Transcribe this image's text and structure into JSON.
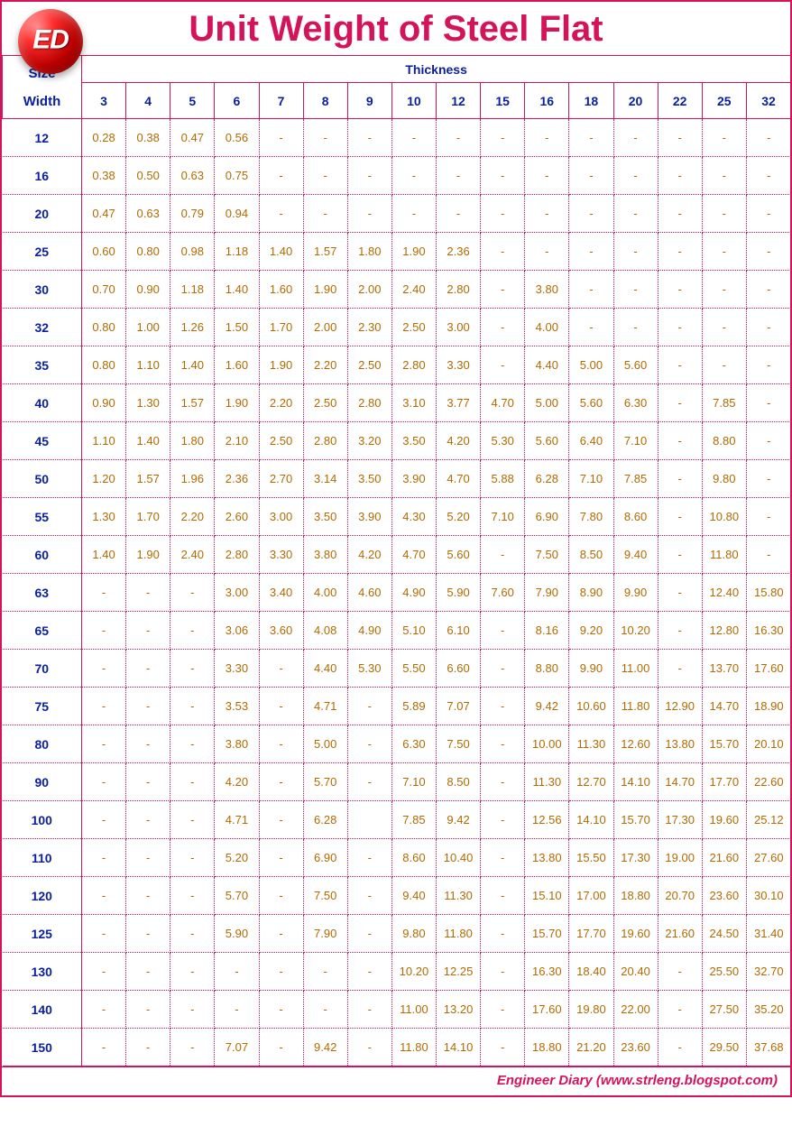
{
  "logo_text": "ED",
  "title": "Unit Weight of Steel Flat",
  "footer": "Engineer Diary (www.strleng.blogspot.com)",
  "colors": {
    "border": "#d4145a",
    "title": "#d4145a",
    "header_text": "#0b1ea0",
    "cell_text": "#b26a00",
    "background": "#ffffff"
  },
  "table": {
    "size_label_top": "Size",
    "size_label_bottom": "Width",
    "thickness_label": "Thickness",
    "thickness_cols": [
      "3",
      "4",
      "5",
      "6",
      "7",
      "8",
      "9",
      "10",
      "12",
      "15",
      "16",
      "18",
      "20",
      "22",
      "25",
      "32"
    ],
    "widths": [
      "12",
      "16",
      "20",
      "25",
      "30",
      "32",
      "35",
      "40",
      "45",
      "50",
      "55",
      "60",
      "63",
      "65",
      "70",
      "75",
      "80",
      "90",
      "100",
      "110",
      "120",
      "125",
      "130",
      "140",
      "150"
    ],
    "rows": [
      [
        "0.28",
        "0.38",
        "0.47",
        "0.56",
        "-",
        "-",
        "-",
        "-",
        "-",
        "-",
        "-",
        "-",
        "-",
        "-",
        "-",
        "-"
      ],
      [
        "0.38",
        "0.50",
        "0.63",
        "0.75",
        "-",
        "-",
        "-",
        "-",
        "-",
        "-",
        "-",
        "-",
        "-",
        "-",
        "-",
        "-"
      ],
      [
        "0.47",
        "0.63",
        "0.79",
        "0.94",
        "-",
        "-",
        "-",
        "-",
        "-",
        "-",
        "-",
        "-",
        "-",
        "-",
        "-",
        "-"
      ],
      [
        "0.60",
        "0.80",
        "0.98",
        "1.18",
        "1.40",
        "1.57",
        "1.80",
        "1.90",
        "2.36",
        "-",
        "-",
        "-",
        "-",
        "-",
        "-",
        "-"
      ],
      [
        "0.70",
        "0.90",
        "1.18",
        "1.40",
        "1.60",
        "1.90",
        "2.00",
        "2.40",
        "2.80",
        "-",
        "3.80",
        "-",
        "-",
        "-",
        "-",
        "-"
      ],
      [
        "0.80",
        "1.00",
        "1.26",
        "1.50",
        "1.70",
        "2.00",
        "2.30",
        "2.50",
        "3.00",
        "-",
        "4.00",
        "-",
        "-",
        "-",
        "-",
        "-"
      ],
      [
        "0.80",
        "1.10",
        "1.40",
        "1.60",
        "1.90",
        "2.20",
        "2.50",
        "2.80",
        "3.30",
        "-",
        "4.40",
        "5.00",
        "5.60",
        "-",
        "-",
        "-"
      ],
      [
        "0.90",
        "1.30",
        "1.57",
        "1.90",
        "2.20",
        "2.50",
        "2.80",
        "3.10",
        "3.77",
        "4.70",
        "5.00",
        "5.60",
        "6.30",
        "-",
        "7.85",
        "-"
      ],
      [
        "1.10",
        "1.40",
        "1.80",
        "2.10",
        "2.50",
        "2.80",
        "3.20",
        "3.50",
        "4.20",
        "5.30",
        "5.60",
        "6.40",
        "7.10",
        "-",
        "8.80",
        "-"
      ],
      [
        "1.20",
        "1.57",
        "1.96",
        "2.36",
        "2.70",
        "3.14",
        "3.50",
        "3.90",
        "4.70",
        "5.88",
        "6.28",
        "7.10",
        "7.85",
        "-",
        "9.80",
        "-"
      ],
      [
        "1.30",
        "1.70",
        "2.20",
        "2.60",
        "3.00",
        "3.50",
        "3.90",
        "4.30",
        "5.20",
        "7.10",
        "6.90",
        "7.80",
        "8.60",
        "-",
        "10.80",
        "-"
      ],
      [
        "1.40",
        "1.90",
        "2.40",
        "2.80",
        "3.30",
        "3.80",
        "4.20",
        "4.70",
        "5.60",
        "-",
        "7.50",
        "8.50",
        "9.40",
        "-",
        "11.80",
        "-"
      ],
      [
        "-",
        "-",
        "-",
        "3.00",
        "3.40",
        "4.00",
        "4.60",
        "4.90",
        "5.90",
        "7.60",
        "7.90",
        "8.90",
        "9.90",
        "-",
        "12.40",
        "15.80"
      ],
      [
        "-",
        "-",
        "-",
        "3.06",
        "3.60",
        "4.08",
        "4.90",
        "5.10",
        "6.10",
        "-",
        "8.16",
        "9.20",
        "10.20",
        "-",
        "12.80",
        "16.30"
      ],
      [
        "-",
        "-",
        "-",
        "3.30",
        "-",
        "4.40",
        "5.30",
        "5.50",
        "6.60",
        "-",
        "8.80",
        "9.90",
        "11.00",
        "-",
        "13.70",
        "17.60"
      ],
      [
        "-",
        "-",
        "-",
        "3.53",
        "-",
        "4.71",
        "-",
        "5.89",
        "7.07",
        "-",
        "9.42",
        "10.60",
        "11.80",
        "12.90",
        "14.70",
        "18.90"
      ],
      [
        "-",
        "-",
        "-",
        "3.80",
        "-",
        "5.00",
        "-",
        "6.30",
        "7.50",
        "-",
        "10.00",
        "11.30",
        "12.60",
        "13.80",
        "15.70",
        "20.10"
      ],
      [
        "-",
        "-",
        "-",
        "4.20",
        "-",
        "5.70",
        "-",
        "7.10",
        "8.50",
        "-",
        "11.30",
        "12.70",
        "14.10",
        "14.70",
        "17.70",
        "22.60"
      ],
      [
        "-",
        "-",
        "-",
        "4.71",
        "-",
        "6.28",
        "",
        "7.85",
        "9.42",
        "-",
        "12.56",
        "14.10",
        "15.70",
        "17.30",
        "19.60",
        "25.12"
      ],
      [
        "-",
        "-",
        "-",
        "5.20",
        "-",
        "6.90",
        "-",
        "8.60",
        "10.40",
        "-",
        "13.80",
        "15.50",
        "17.30",
        "19.00",
        "21.60",
        "27.60"
      ],
      [
        "-",
        "-",
        "-",
        "5.70",
        "-",
        "7.50",
        "-",
        "9.40",
        "11.30",
        "-",
        "15.10",
        "17.00",
        "18.80",
        "20.70",
        "23.60",
        "30.10"
      ],
      [
        "-",
        "-",
        "-",
        "5.90",
        "-",
        "7.90",
        "-",
        "9.80",
        "11.80",
        "-",
        "15.70",
        "17.70",
        "19.60",
        "21.60",
        "24.50",
        "31.40"
      ],
      [
        "-",
        "-",
        "-",
        "-",
        "-",
        "-",
        "-",
        "10.20",
        "12.25",
        "-",
        "16.30",
        "18.40",
        "20.40",
        "-",
        "25.50",
        "32.70"
      ],
      [
        "-",
        "-",
        "-",
        "-",
        "-",
        "-",
        "-",
        "11.00",
        "13.20",
        "-",
        "17.60",
        "19.80",
        "22.00",
        "-",
        "27.50",
        "35.20"
      ],
      [
        "-",
        "-",
        "-",
        "7.07",
        "-",
        "9.42",
        "-",
        "11.80",
        "14.10",
        "-",
        "18.80",
        "21.20",
        "23.60",
        "-",
        "29.50",
        "37.68"
      ]
    ]
  }
}
